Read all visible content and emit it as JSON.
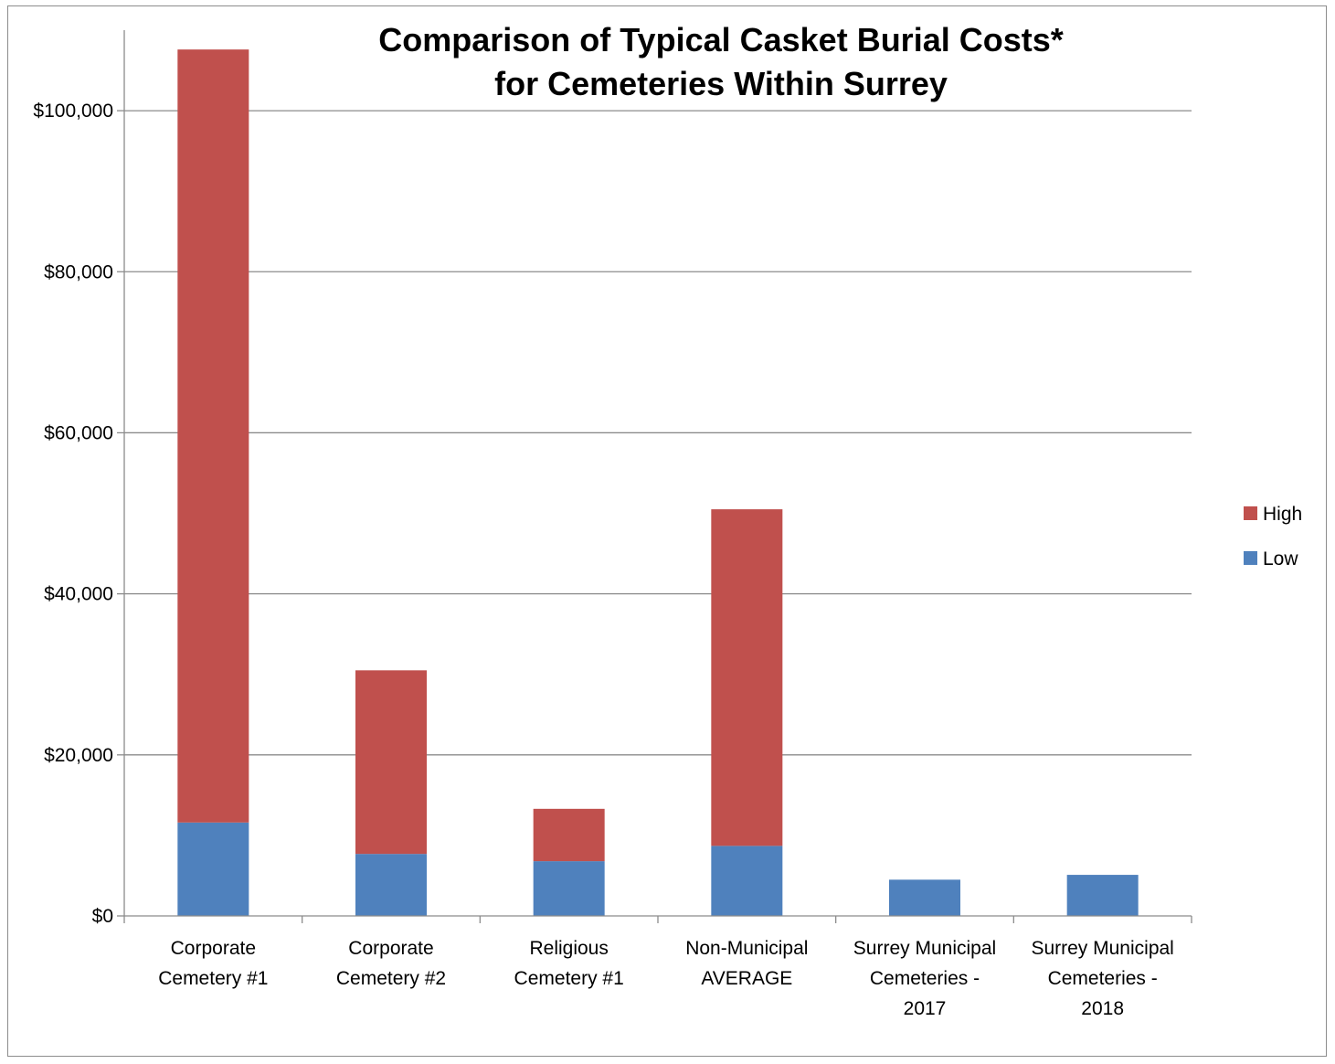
{
  "chart_data": {
    "type": "bar",
    "stacked": true,
    "title_lines": [
      "Comparison of Typical Casket Burial Costs*",
      "for Cemeteries Within Surrey"
    ],
    "categories": [
      [
        "Corporate",
        "Cemetery   #1"
      ],
      [
        "Corporate",
        "Cemetery #2"
      ],
      [
        "Religious",
        "Cemetery #1"
      ],
      [
        "Non-Municipal",
        "AVERAGE"
      ],
      [
        "Surrey Municipal",
        "Cemeteries -",
        "2017"
      ],
      [
        "Surrey Municipal",
        "Cemeteries -",
        "2018"
      ]
    ],
    "series": [
      {
        "name": "Low",
        "color": "#4f81bd",
        "values": [
          11600,
          7700,
          6800,
          8700,
          4500,
          5100
        ]
      },
      {
        "name": "High",
        "color": "#c0504d",
        "values": [
          96000,
          22800,
          6500,
          41800,
          0,
          0
        ]
      }
    ],
    "ylim": [
      0,
      110000
    ],
    "yticks": [
      0,
      20000,
      40000,
      60000,
      80000,
      100000
    ],
    "ytick_labels": [
      "$0",
      "$20,000",
      "$40,000",
      "$60,000",
      "$80,000",
      "$100,000"
    ],
    "grid": true,
    "legend": [
      "High",
      "Low"
    ],
    "legend_position": "right"
  }
}
